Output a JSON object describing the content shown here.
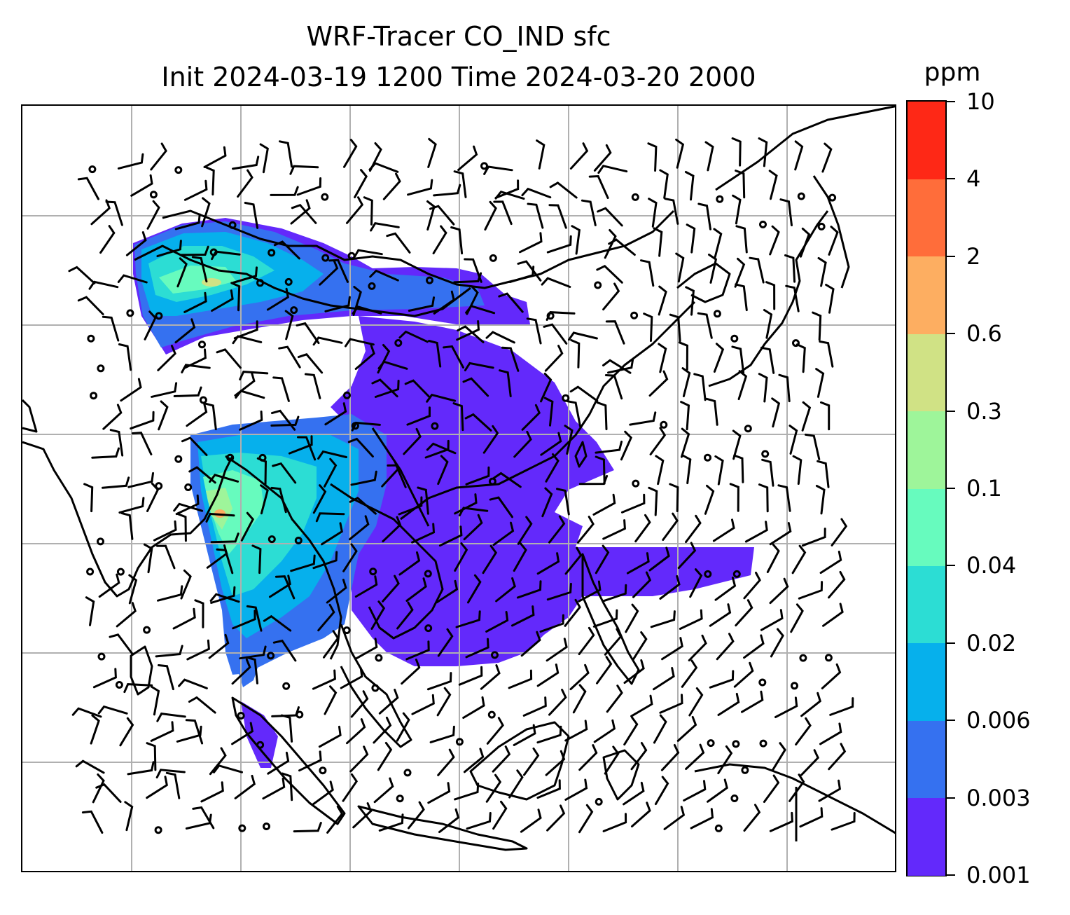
{
  "title": {
    "line1": "WRF-Tracer CO_IND sfc",
    "line2": "Init 2024-03-19 1200 Time 2024-03-20 2000"
  },
  "colorbar": {
    "unit": "ppm",
    "levels": [
      "0.001",
      "0.003",
      "0.006",
      "0.02",
      "0.04",
      "0.1",
      "0.3",
      "0.6",
      "2",
      "4",
      "10"
    ],
    "colors": [
      "#6329fb",
      "#3571f0",
      "#06b0ec",
      "#2cddd4",
      "#67fbbe",
      "#9ef59a",
      "#d0e285",
      "#fdae61",
      "#ff6d3a",
      "#fe2816"
    ]
  },
  "map": {
    "gridlines": true,
    "coastline_color": "#000000",
    "grid_color": "#b0b0b0"
  }
}
